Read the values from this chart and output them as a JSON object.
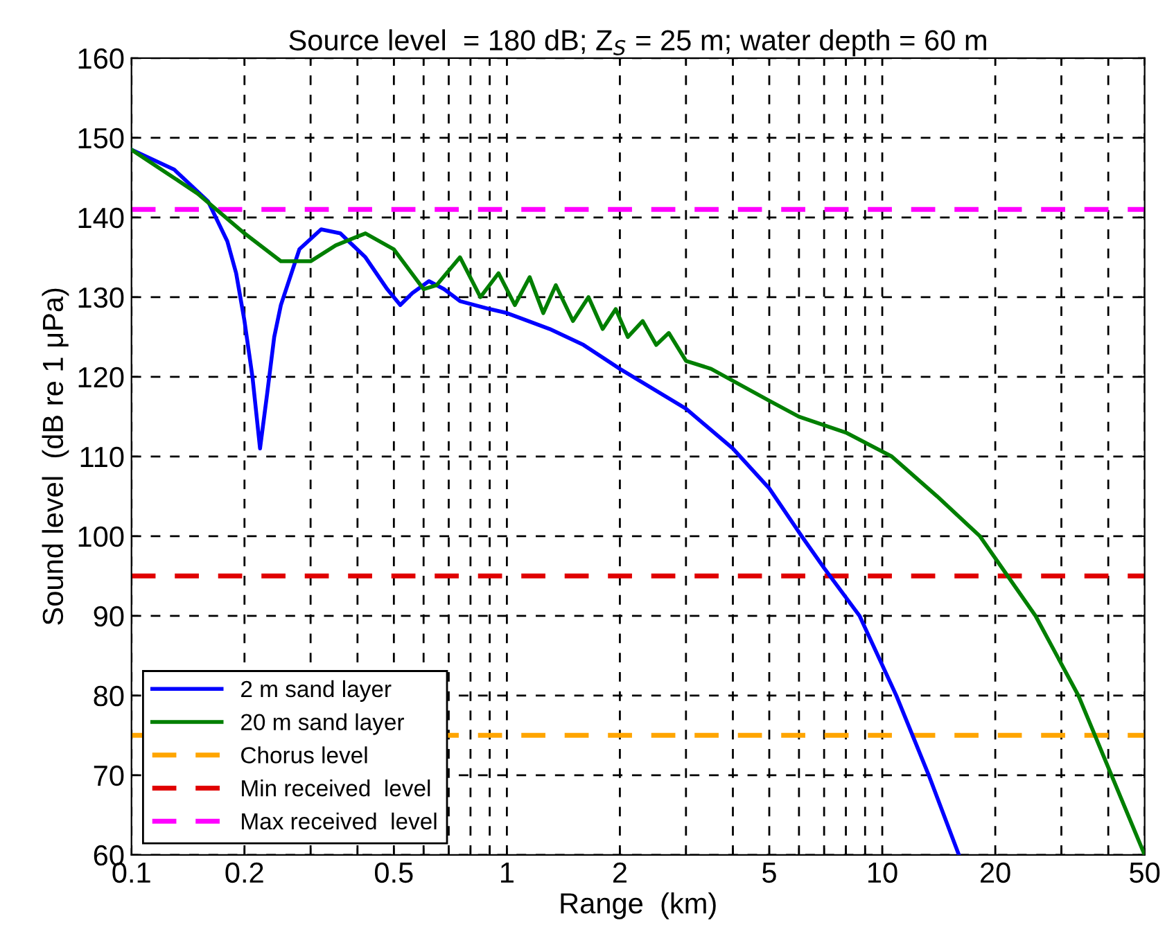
{
  "chart_data": {
    "type": "line",
    "title": "Source level  = 180 dB; Z$_{S}$ = 25 m; water depth = 60 m",
    "xlabel": "Range  (km)",
    "ylabel": "Sound level  (dB re 1 μPa)",
    "log": "x",
    "grid": true,
    "legend": "bottom left",
    "line_style": "solid",
    "xlim": [
      0.1,
      50
    ],
    "ylim": [
      60,
      160
    ],
    "xticks": [
      0.1,
      0.2,
      {
        "value": 0.3,
        "label": null
      },
      {
        "value": 0.4,
        "label": null
      },
      0.5,
      {
        "value": 0.6,
        "label": null
      },
      {
        "value": 0.7,
        "label": null
      },
      {
        "value": 0.8,
        "label": null
      },
      {
        "value": 0.9,
        "label": null
      },
      1,
      2,
      {
        "value": 3,
        "label": null
      },
      {
        "value": 4,
        "label": null
      },
      5,
      {
        "value": 6,
        "label": null
      },
      {
        "value": 7,
        "label": null
      },
      {
        "value": 8,
        "label": null
      },
      {
        "value": 9,
        "label": null
      },
      10,
      20,
      {
        "value": 30,
        "label": null
      },
      {
        "value": 40,
        "label": null
      },
      50
    ],
    "yticks": [
      60,
      70,
      80,
      90,
      100,
      110,
      120,
      130,
      140,
      150,
      160
    ],
    "series": [
      {
        "name": "2 m sand layer",
        "color": "#0000ff",
        "x": [
          0.1,
          0.13,
          0.16,
          0.18,
          0.19,
          0.2,
          0.21,
          0.22,
          0.23,
          0.24,
          0.25,
          0.28,
          0.32,
          0.36,
          0.42,
          0.48,
          0.52,
          0.56,
          0.62,
          0.68,
          0.75,
          0.9,
          1.0,
          1.3,
          1.6,
          2,
          3,
          4,
          5,
          6.1,
          7,
          8.7,
          10.9,
          13.3,
          16
        ],
        "values": [
          148.5,
          146,
          142,
          137,
          133,
          127,
          120,
          111,
          118,
          125,
          129,
          136,
          138.5,
          138,
          135,
          131,
          129,
          130.5,
          132,
          131,
          129.5,
          128.5,
          128,
          126,
          124,
          121,
          116,
          111,
          106,
          100,
          96,
          90,
          80,
          70,
          60
        ]
      },
      {
        "name": "20 m sand layer",
        "color": "#007f00",
        "x": [
          0.1,
          0.15,
          0.2,
          0.25,
          0.3,
          0.35,
          0.42,
          0.5,
          0.6,
          0.65,
          0.75,
          0.85,
          0.95,
          1.05,
          1.15,
          1.25,
          1.35,
          1.5,
          1.65,
          1.8,
          1.95,
          2.1,
          2.3,
          2.5,
          2.7,
          3,
          3.5,
          4,
          5,
          6,
          8,
          10.6,
          14,
          18.2,
          25.6,
          33.3,
          40.8,
          50
        ],
        "values": [
          148.5,
          143,
          138,
          134.5,
          134.5,
          136.5,
          138,
          136,
          131,
          131.5,
          135,
          130,
          133,
          129,
          132.5,
          128,
          131.5,
          127,
          130,
          126,
          128.5,
          125,
          127,
          124,
          125.5,
          122,
          121,
          119.5,
          117,
          115,
          113,
          110,
          105,
          100,
          90,
          80,
          70,
          60
        ]
      }
    ],
    "ref_lines": [
      {
        "axis": "y",
        "value": 75,
        "label": "Chorus level",
        "color": "#ffa500",
        "line_style": "dashed"
      },
      {
        "axis": "y",
        "value": 95,
        "label": "Min received  level",
        "color": "#e00000",
        "line_style": "dashed"
      },
      {
        "axis": "y",
        "value": 141,
        "label": "Max received  level",
        "color": "#ff00ff",
        "line_style": "dashed"
      }
    ]
  }
}
